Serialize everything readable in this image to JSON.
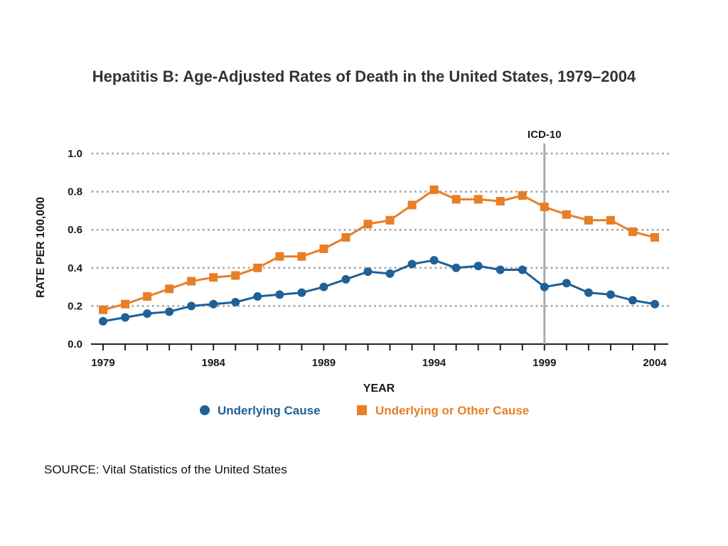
{
  "page": {
    "title": "Hepatitis B:  Age-Adjusted Rates of Death in the United States, 1979–2004",
    "source": "SOURCE:  Vital Statistics of the United States"
  },
  "chart_data": {
    "type": "line",
    "title": "Hepatitis B:  Age-Adjusted Rates of Death in the United States, 1979–2004",
    "xlabel": "YEAR",
    "ylabel": "RATE PER 100,000",
    "x": [
      1979,
      1980,
      1981,
      1982,
      1983,
      1984,
      1985,
      1986,
      1987,
      1988,
      1989,
      1990,
      1991,
      1992,
      1993,
      1994,
      1995,
      1996,
      1997,
      1998,
      1999,
      2000,
      2001,
      2002,
      2003,
      2004
    ],
    "x_tick_labels": [
      "1979",
      "1984",
      "1989",
      "1994",
      "1999",
      "2004"
    ],
    "xlim": [
      1979,
      2004
    ],
    "ylim": [
      0,
      1.0
    ],
    "y_tick_labels": [
      "0.0",
      "0.2",
      "0.4",
      "0.6",
      "0.8",
      "1.0"
    ],
    "y_ticks": [
      0,
      0.2,
      0.4,
      0.6,
      0.8,
      1.0
    ],
    "grid": "horizontal dotted",
    "legend_position": "bottom-center",
    "series": [
      {
        "name": "Underlying Cause",
        "marker": "circle",
        "color": "#1f6096",
        "values": [
          0.12,
          0.14,
          0.16,
          0.17,
          0.2,
          0.21,
          0.22,
          0.25,
          0.26,
          0.27,
          0.3,
          0.34,
          0.38,
          0.37,
          0.42,
          0.44,
          0.4,
          0.41,
          0.39,
          0.39,
          0.3,
          0.32,
          0.27,
          0.26,
          0.23,
          0.21
        ]
      },
      {
        "name": "Underlying or Other Cause",
        "marker": "square",
        "color": "#e87e26",
        "values": [
          0.18,
          0.21,
          0.25,
          0.29,
          0.33,
          0.35,
          0.36,
          0.4,
          0.46,
          0.46,
          0.5,
          0.56,
          0.63,
          0.65,
          0.73,
          0.81,
          0.76,
          0.76,
          0.75,
          0.78,
          0.72,
          0.68,
          0.65,
          0.65,
          0.59,
          0.56
        ]
      }
    ],
    "annotations": [
      {
        "text": "ICD-10",
        "x": 1999,
        "type": "vertical-line",
        "color": "#aaaaaa"
      }
    ]
  }
}
